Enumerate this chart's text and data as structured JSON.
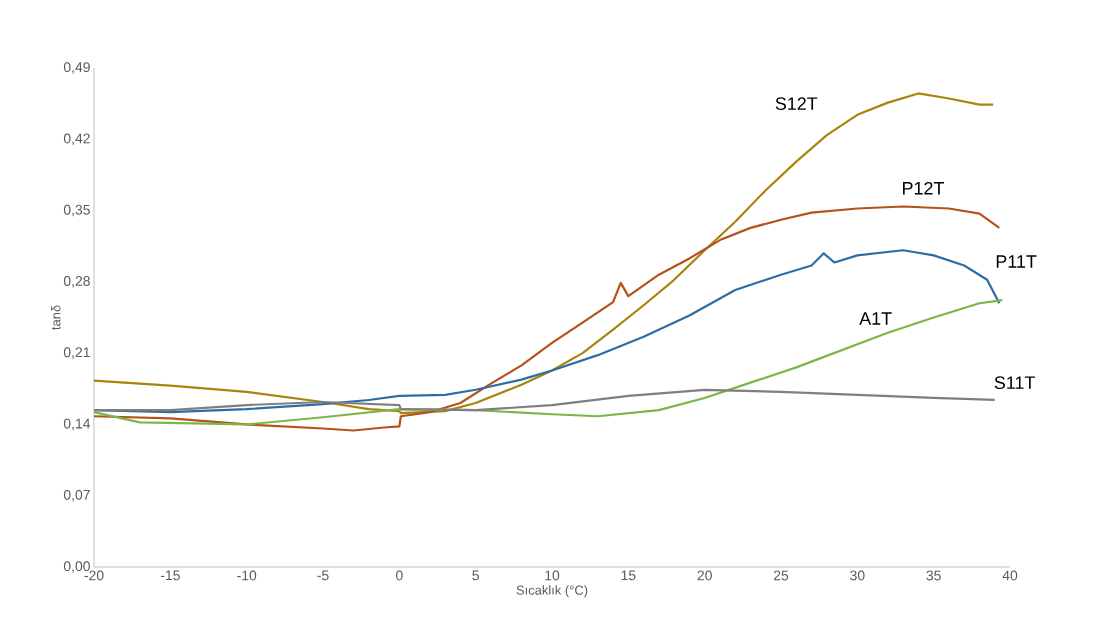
{
  "chart_data": {
    "type": "line",
    "xlabel": "Sıcaklık (°C)",
    "ylabel": "tanδ",
    "xlim": [
      -20,
      40
    ],
    "xticks": [
      -20,
      -15,
      -10,
      -5,
      0,
      5,
      10,
      15,
      20,
      25,
      30,
      35,
      40
    ],
    "ylim": [
      0,
      0.49
    ],
    "yticks": [
      {
        "value": 0,
        "label": "0,00"
      },
      {
        "value": 0.07,
        "label": "0,07"
      },
      {
        "value": 0.14,
        "label": "0,14"
      },
      {
        "value": 0.21,
        "label": "0,21"
      },
      {
        "value": 0.28,
        "label": "0,28"
      },
      {
        "value": 0.35,
        "label": "0,35"
      },
      {
        "value": 0.42,
        "label": "0,42"
      },
      {
        "value": 0.49,
        "label": "0,49"
      }
    ],
    "grid": false,
    "legend": false,
    "marker": "none",
    "line_style": "solid",
    "series": [
      {
        "name": "S12T",
        "color": "#a8840c",
        "x": [
          -20,
          -15,
          -10,
          -5,
          -2,
          0,
          0.1,
          3,
          5,
          8,
          10,
          12,
          14,
          16,
          18,
          20,
          22,
          24,
          26,
          28,
          30,
          32,
          34,
          36,
          38,
          38.9
        ],
        "values": [
          0.183,
          0.178,
          0.172,
          0.162,
          0.155,
          0.153,
          0.151,
          0.153,
          0.161,
          0.179,
          0.193,
          0.21,
          0.233,
          0.257,
          0.282,
          0.311,
          0.339,
          0.37,
          0.398,
          0.424,
          0.444,
          0.456,
          0.465,
          0.46,
          0.454,
          0.454
        ]
      },
      {
        "name": "P12T",
        "color": "#b5521a",
        "x": [
          -20,
          -15,
          -10,
          -5,
          -3,
          -1,
          0,
          0.1,
          2,
          4,
          6,
          8,
          10,
          12,
          14,
          14.5,
          15,
          17,
          19,
          21,
          23,
          25,
          27,
          30,
          33,
          36,
          38,
          39.3
        ],
        "values": [
          0.148,
          0.146,
          0.14,
          0.136,
          0.134,
          0.137,
          0.138,
          0.148,
          0.152,
          0.161,
          0.18,
          0.198,
          0.22,
          0.24,
          0.26,
          0.279,
          0.266,
          0.287,
          0.303,
          0.321,
          0.333,
          0.341,
          0.348,
          0.352,
          0.354,
          0.352,
          0.347,
          0.333
        ]
      },
      {
        "name": "P11T",
        "color": "#2e6da4",
        "x": [
          -20,
          -15,
          -10,
          -5,
          -2,
          0,
          3,
          5,
          8,
          10,
          13,
          16,
          19,
          22,
          25,
          27,
          27.8,
          28.5,
          30,
          33,
          35,
          37,
          38.5,
          39.3
        ],
        "values": [
          0.154,
          0.152,
          0.155,
          0.16,
          0.164,
          0.168,
          0.169,
          0.174,
          0.184,
          0.193,
          0.208,
          0.226,
          0.247,
          0.272,
          0.287,
          0.296,
          0.308,
          0.299,
          0.306,
          0.311,
          0.306,
          0.296,
          0.282,
          0.259
        ]
      },
      {
        "name": "A1T",
        "color": "#7ab648",
        "x": [
          -20,
          -17,
          -10,
          -5,
          0,
          5,
          10,
          13,
          17,
          20,
          23,
          26,
          29,
          32,
          35,
          38,
          39.5
        ],
        "values": [
          0.152,
          0.142,
          0.14,
          0.147,
          0.155,
          0.154,
          0.15,
          0.148,
          0.154,
          0.166,
          0.181,
          0.196,
          0.213,
          0.23,
          0.245,
          0.259,
          0.262
        ]
      },
      {
        "name": "S11T",
        "color": "#7f7f7f",
        "x": [
          -20,
          -15,
          -10,
          -5,
          0,
          0.1,
          5,
          10,
          15,
          20,
          25,
          30,
          35,
          39
        ],
        "values": [
          0.154,
          0.154,
          0.159,
          0.162,
          0.159,
          0.155,
          0.154,
          0.159,
          0.168,
          0.174,
          0.172,
          0.169,
          0.166,
          0.164
        ]
      }
    ]
  }
}
